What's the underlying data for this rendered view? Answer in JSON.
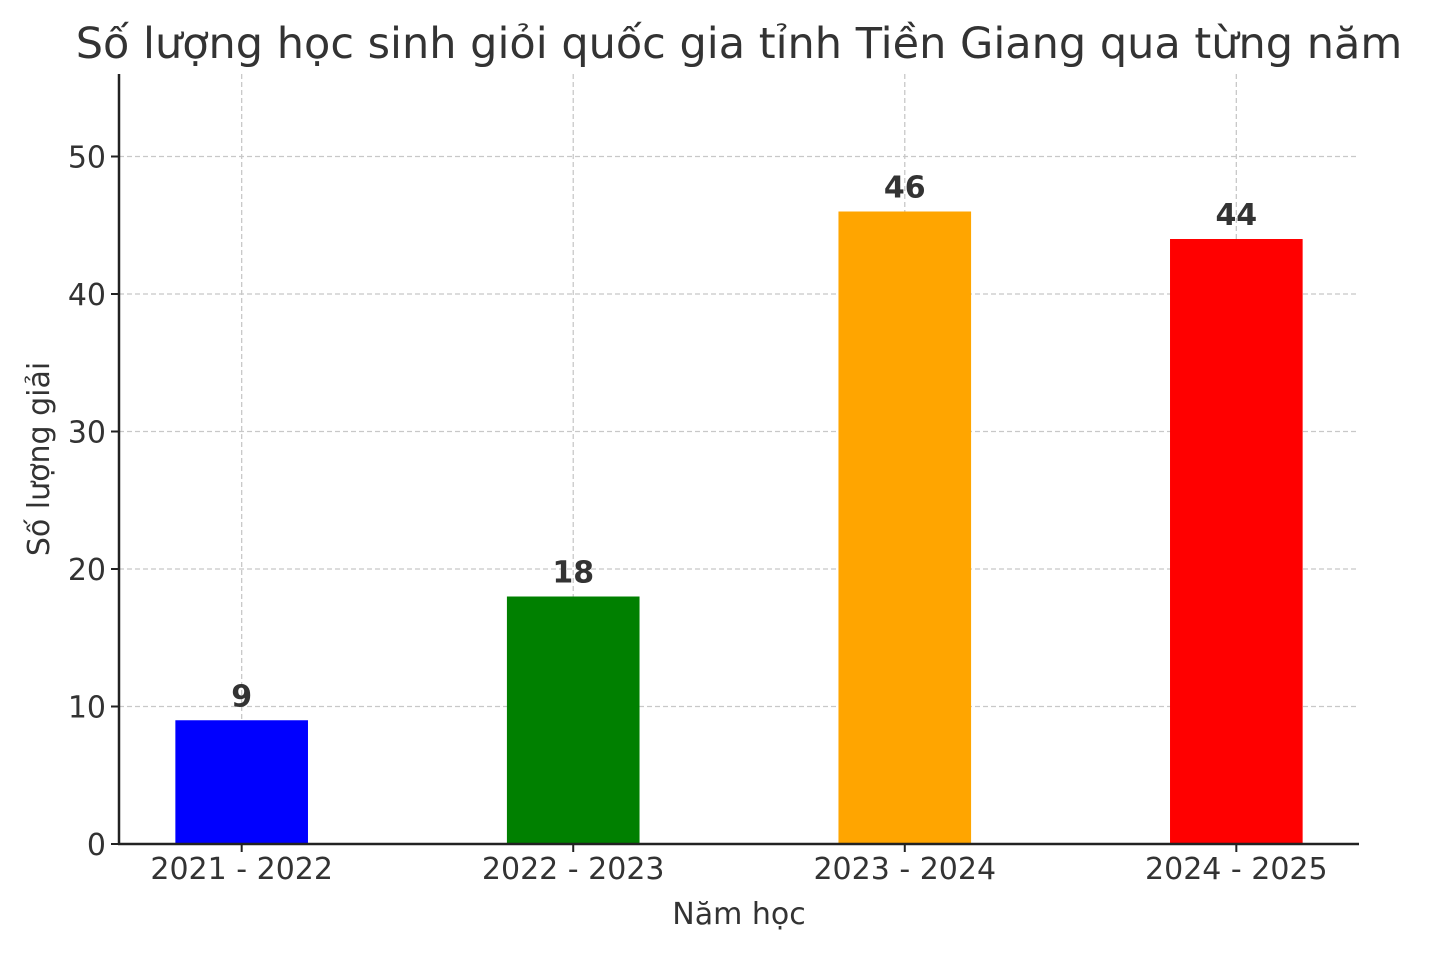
{
  "chart_data": {
    "type": "bar",
    "title": "Số lượng học sinh giỏi quốc gia tỉnh Tiền Giang qua từng năm",
    "xlabel": "Năm học",
    "ylabel": "Số lượng giải",
    "categories": [
      "2021 - 2022",
      "2022 - 2023",
      "2023 - 2024",
      "2024 - 2025"
    ],
    "values": [
      9,
      18,
      46,
      44
    ],
    "colors": [
      "#0000ff",
      "#008000",
      "#ffa500",
      "#ff0000"
    ],
    "data_labels": [
      "9",
      "18",
      "46",
      "44"
    ],
    "ylim": [
      0,
      56
    ],
    "yticks": [
      0,
      10,
      20,
      30,
      40,
      50
    ],
    "grid": true
  }
}
